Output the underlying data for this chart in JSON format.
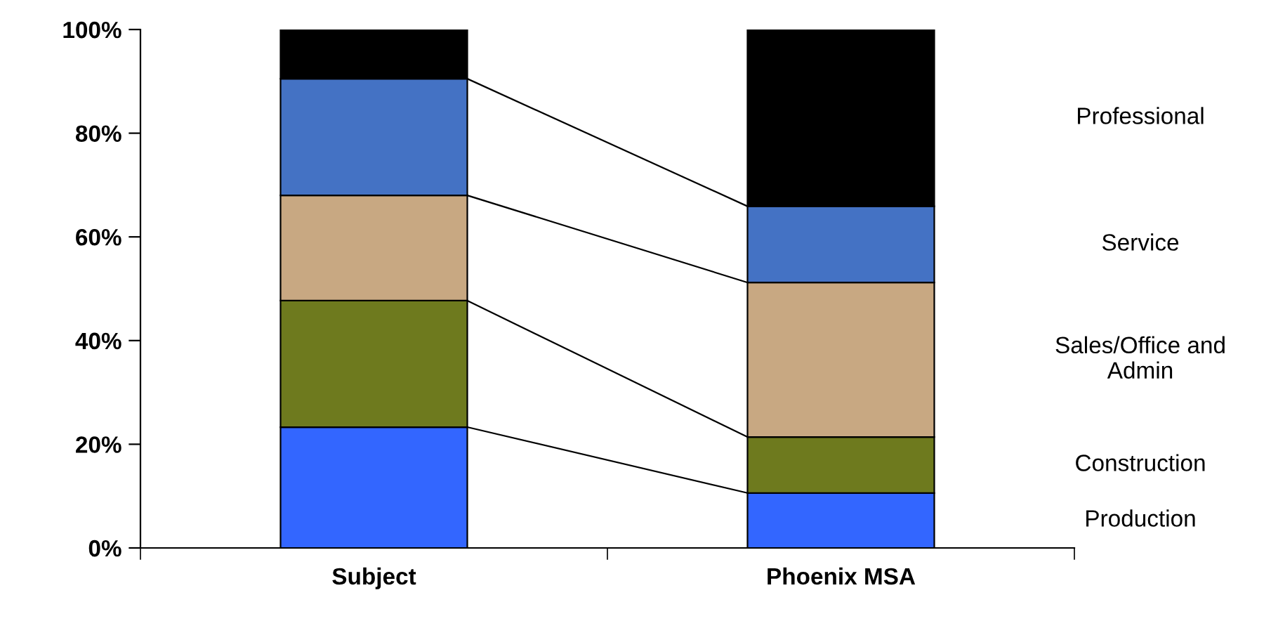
{
  "chart_data": {
    "type": "bar",
    "stacked": true,
    "categories": [
      "Subject",
      "Phoenix MSA"
    ],
    "series": [
      {
        "name": "Production",
        "color": "#3366ff",
        "values": [
          23.3,
          10.6
        ]
      },
      {
        "name": "Construction",
        "color": "#6e7a1e",
        "values": [
          24.4,
          10.8
        ]
      },
      {
        "name": "Sales/Office and Admin",
        "color": "#c8a882",
        "values": [
          20.3,
          29.8
        ]
      },
      {
        "name": "Service",
        "color": "#4472c4",
        "values": [
          22.5,
          14.7
        ]
      },
      {
        "name": "Professional",
        "color": "#000000",
        "values": [
          9.5,
          34.1
        ]
      }
    ],
    "ylim": [
      0,
      100
    ],
    "yticks": [
      {
        "value": 0,
        "label": "0%"
      },
      {
        "value": 20,
        "label": "20%"
      },
      {
        "value": 40,
        "label": "40%"
      },
      {
        "value": 60,
        "label": "60%"
      },
      {
        "value": 80,
        "label": "80%"
      },
      {
        "value": 100,
        "label": "100%"
      }
    ],
    "grid": false
  }
}
